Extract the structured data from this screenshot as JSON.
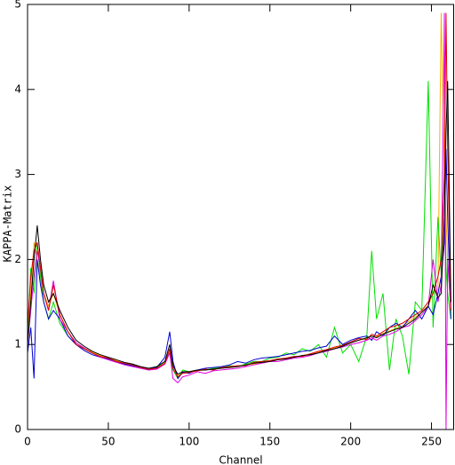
{
  "chart_data": {
    "type": "line",
    "x_label": "Channel",
    "y_label": "KAPPA-Matrix",
    "xlim": [
      0,
      264
    ],
    "ylim": [
      0,
      5
    ],
    "xticks": [
      0,
      50,
      100,
      150,
      200,
      250
    ],
    "yticks": [
      0,
      1,
      2,
      3,
      4,
      5
    ],
    "x": [
      0,
      2,
      4,
      6,
      8,
      10,
      13,
      16,
      20,
      25,
      30,
      35,
      40,
      45,
      50,
      55,
      60,
      65,
      70,
      75,
      80,
      85,
      88,
      90,
      93,
      96,
      100,
      105,
      110,
      115,
      120,
      125,
      130,
      135,
      140,
      145,
      150,
      155,
      160,
      165,
      170,
      175,
      180,
      185,
      190,
      195,
      200,
      205,
      210,
      213,
      216,
      220,
      224,
      228,
      232,
      236,
      240,
      244,
      248,
      251,
      254,
      256,
      258,
      259,
      260,
      262
    ],
    "series": [
      {
        "color": "#ffb000",
        "values": [
          1.1,
          1.6,
          2.2,
          2.0,
          1.8,
          1.6,
          1.45,
          1.6,
          1.35,
          1.15,
          1.02,
          0.96,
          0.91,
          0.87,
          0.84,
          0.81,
          0.78,
          0.76,
          0.73,
          0.71,
          0.72,
          0.78,
          0.92,
          0.7,
          0.63,
          0.67,
          0.67,
          0.69,
          0.7,
          0.71,
          0.72,
          0.73,
          0.74,
          0.76,
          0.77,
          0.79,
          0.81,
          0.82,
          0.84,
          0.85,
          0.87,
          0.89,
          0.91,
          0.94,
          0.96,
          0.99,
          1.02,
          1.05,
          1.07,
          1.1,
          1.09,
          1.13,
          1.16,
          1.19,
          1.22,
          1.27,
          1.32,
          1.38,
          1.46,
          1.6,
          1.65,
          4.9,
          3.0,
          2.5,
          2.0,
          1.4
        ]
      },
      {
        "color": "#00e000",
        "values": [
          1.1,
          1.9,
          1.6,
          2.2,
          1.8,
          1.5,
          1.3,
          1.5,
          1.25,
          1.1,
          1.0,
          0.95,
          0.9,
          0.86,
          0.83,
          0.8,
          0.77,
          0.75,
          0.72,
          0.7,
          0.73,
          0.8,
          0.9,
          0.7,
          0.6,
          0.7,
          0.68,
          0.7,
          0.7,
          0.72,
          0.73,
          0.75,
          0.74,
          0.77,
          0.8,
          0.8,
          0.84,
          0.85,
          0.9,
          0.88,
          0.95,
          0.92,
          1.0,
          0.85,
          1.2,
          0.9,
          1.0,
          0.8,
          1.1,
          2.1,
          1.3,
          1.6,
          0.7,
          1.3,
          1.1,
          0.65,
          1.5,
          1.4,
          4.1,
          1.2,
          2.5,
          1.8,
          3.0,
          1.9,
          1.6,
          1.3
        ]
      },
      {
        "color": "#0000d0",
        "values": [
          0.9,
          1.2,
          0.6,
          2.0,
          1.7,
          1.5,
          1.3,
          1.4,
          1.3,
          1.1,
          1.0,
          0.93,
          0.88,
          0.85,
          0.83,
          0.8,
          0.77,
          0.75,
          0.73,
          0.71,
          0.73,
          0.85,
          1.15,
          0.8,
          0.6,
          0.67,
          0.66,
          0.7,
          0.72,
          0.73,
          0.74,
          0.76,
          0.8,
          0.78,
          0.82,
          0.84,
          0.85,
          0.86,
          0.88,
          0.9,
          0.92,
          0.93,
          0.96,
          0.98,
          1.1,
          1.0,
          1.05,
          1.08,
          1.1,
          1.05,
          1.15,
          1.1,
          1.2,
          1.25,
          1.2,
          1.3,
          1.4,
          1.3,
          1.45,
          1.35,
          1.6,
          1.8,
          2.2,
          3.3,
          2.5,
          1.3
        ]
      },
      {
        "color": "#e000e0",
        "values": [
          1.0,
          1.4,
          1.8,
          2.1,
          1.9,
          1.6,
          1.4,
          1.75,
          1.3,
          1.15,
          1.02,
          0.96,
          0.9,
          0.85,
          0.82,
          0.79,
          0.76,
          0.74,
          0.72,
          0.7,
          0.71,
          0.77,
          0.9,
          0.6,
          0.55,
          0.62,
          0.64,
          0.68,
          0.66,
          0.69,
          0.7,
          0.71,
          0.72,
          0.74,
          0.76,
          0.78,
          0.8,
          0.8,
          0.82,
          0.84,
          0.85,
          0.87,
          0.9,
          0.92,
          0.95,
          0.97,
          1.0,
          1.02,
          1.05,
          1.08,
          1.05,
          1.1,
          1.12,
          1.15,
          1.2,
          1.22,
          1.28,
          1.35,
          1.45,
          2.0,
          1.5,
          1.7,
          4.9,
          0,
          2.0,
          1.4
        ]
      },
      {
        "color": "#e00000",
        "values": [
          1.2,
          1.8,
          2.1,
          2.2,
          1.9,
          1.6,
          1.4,
          1.7,
          1.35,
          1.15,
          1.0,
          0.95,
          0.9,
          0.86,
          0.84,
          0.8,
          0.78,
          0.76,
          0.73,
          0.71,
          0.72,
          0.78,
          0.95,
          0.72,
          0.62,
          0.66,
          0.67,
          0.69,
          0.71,
          0.7,
          0.73,
          0.74,
          0.75,
          0.75,
          0.79,
          0.8,
          0.81,
          0.83,
          0.84,
          0.86,
          0.86,
          0.89,
          0.92,
          0.94,
          0.97,
          0.99,
          1.03,
          1.07,
          1.06,
          1.12,
          1.1,
          1.15,
          1.2,
          1.22,
          1.25,
          1.3,
          1.35,
          1.4,
          1.5,
          1.6,
          1.8,
          2.0,
          3.0,
          4.9,
          3.3,
          1.4
        ]
      },
      {
        "color": "#000000",
        "values": [
          1.0,
          1.5,
          2.0,
          2.4,
          2.0,
          1.7,
          1.5,
          1.6,
          1.4,
          1.2,
          1.05,
          0.98,
          0.92,
          0.88,
          0.85,
          0.82,
          0.79,
          0.77,
          0.74,
          0.72,
          0.74,
          0.8,
          1.0,
          0.75,
          0.65,
          0.68,
          0.68,
          0.7,
          0.7,
          0.71,
          0.72,
          0.73,
          0.74,
          0.76,
          0.78,
          0.79,
          0.8,
          0.82,
          0.83,
          0.85,
          0.87,
          0.88,
          0.9,
          0.93,
          0.95,
          0.98,
          1.02,
          1.05,
          1.08,
          1.1,
          1.08,
          1.12,
          1.15,
          1.18,
          1.2,
          1.25,
          1.3,
          1.38,
          1.45,
          1.7,
          1.55,
          1.6,
          2.5,
          3.5,
          4.1,
          1.5
        ]
      }
    ]
  }
}
